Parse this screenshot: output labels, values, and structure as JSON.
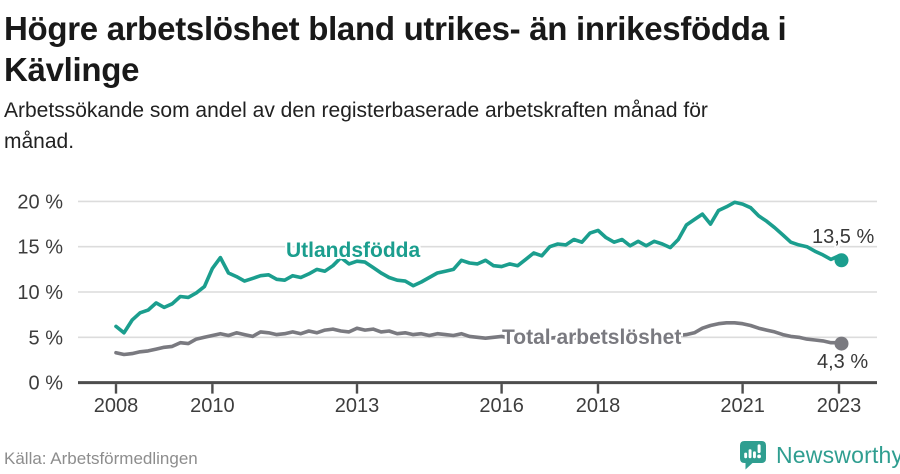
{
  "header": {
    "title_lines": [
      "Högre arbetslöshet bland utrikes- än inrikesfödda i",
      "Kävlinge"
    ],
    "subtitle_lines": [
      "Arbetssökande som andel av den registerbaserade arbetskraften månad för",
      "månad."
    ]
  },
  "footer": {
    "source": "Källa: Arbetsförmedlingen",
    "brand": "Newsworthy"
  },
  "colors": {
    "teal": "#1b9e8e",
    "gray": "#7a7a80",
    "grid": "#dcdcdc",
    "axis": "#4d4d4d",
    "tick_text": "#3d3d3d",
    "annotation_text": "#383838",
    "title_text": "#191919",
    "subtitle_text": "#212121",
    "source_text": "#8d8d8d",
    "brand_teal": "#2f9e90"
  },
  "chart_data": {
    "type": "line",
    "title": "Högre arbetslöshet bland utrikes- än inrikesfödda i Kävlinge",
    "subtitle": "Arbetssökande som andel av den registerbaserade arbetskraften månad för månad.",
    "x_start": 2008.0,
    "x_step_years": 0.16667,
    "x_ticks": [
      2008,
      2010,
      2013,
      2016,
      2018,
      2021,
      2023
    ],
    "y_ticks": [
      0,
      5,
      10,
      15,
      20
    ],
    "y_suffix": " %",
    "ylim": [
      0,
      20
    ],
    "grid": true,
    "legend_position": "inline-labels",
    "series": [
      {
        "name": "Utlandsfödda",
        "end_label": "13,5 %",
        "end_value": 13.5,
        "values": [
          6.2,
          5.5,
          6.9,
          7.7,
          8.0,
          8.8,
          8.3,
          8.7,
          9.5,
          9.4,
          9.9,
          10.6,
          12.6,
          13.8,
          12.1,
          11.7,
          11.2,
          11.5,
          11.8,
          11.9,
          11.4,
          11.3,
          11.8,
          11.6,
          12.0,
          12.5,
          12.3,
          12.9,
          13.8,
          13.1,
          13.4,
          13.3,
          12.7,
          12.1,
          11.6,
          11.3,
          11.2,
          10.7,
          11.1,
          11.6,
          12.1,
          12.3,
          12.5,
          13.5,
          13.2,
          13.1,
          13.5,
          12.9,
          12.8,
          13.1,
          12.9,
          13.6,
          14.3,
          14.0,
          15.0,
          15.3,
          15.2,
          15.8,
          15.5,
          16.5,
          16.8,
          16.0,
          15.5,
          15.8,
          15.1,
          15.6,
          15.1,
          15.6,
          15.3,
          14.9,
          15.8,
          17.4,
          18.0,
          18.6,
          17.5,
          19.0,
          19.4,
          19.9,
          19.7,
          19.3,
          18.4,
          17.8,
          17.1,
          16.3,
          15.5,
          15.2,
          15.0,
          14.5,
          14.1,
          13.6,
          14.0,
          13.5
        ]
      },
      {
        "name": "Total arbetslöshet",
        "end_label": "4,3 %",
        "end_value": 4.3,
        "values": [
          3.3,
          3.1,
          3.2,
          3.4,
          3.5,
          3.7,
          3.9,
          4.0,
          4.4,
          4.3,
          4.8,
          5.0,
          5.2,
          5.4,
          5.2,
          5.5,
          5.3,
          5.1,
          5.6,
          5.5,
          5.3,
          5.4,
          5.6,
          5.4,
          5.7,
          5.5,
          5.8,
          5.9,
          5.7,
          5.6,
          6.0,
          5.8,
          5.9,
          5.6,
          5.7,
          5.4,
          5.5,
          5.3,
          5.4,
          5.2,
          5.4,
          5.3,
          5.2,
          5.4,
          5.1,
          5.0,
          4.9,
          5.0,
          5.1,
          4.9,
          5.0,
          4.8,
          5.0,
          4.9,
          4.9,
          5.0,
          4.8,
          4.9,
          5.0,
          4.9,
          5.0,
          4.9,
          5.0,
          5.1,
          5.0,
          5.1,
          5.0,
          5.1,
          5.0,
          5.1,
          5.2,
          5.3,
          5.5,
          6.0,
          6.3,
          6.5,
          6.6,
          6.6,
          6.5,
          6.3,
          6.0,
          5.8,
          5.6,
          5.3,
          5.1,
          5.0,
          4.8,
          4.7,
          4.6,
          4.4,
          4.4,
          4.3
        ]
      }
    ]
  }
}
